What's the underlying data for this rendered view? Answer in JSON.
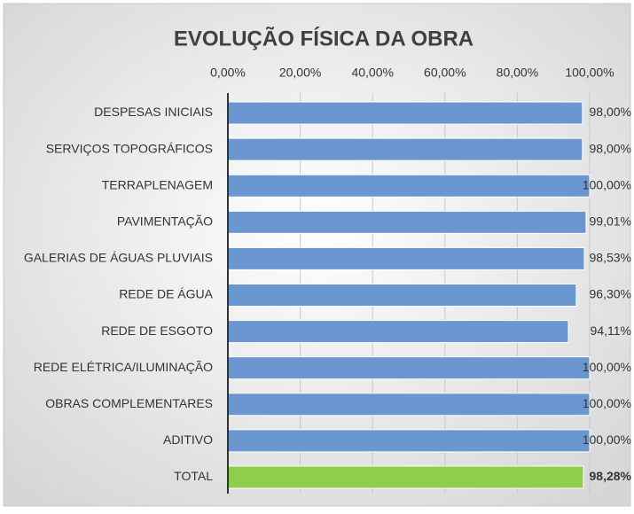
{
  "chart_data": {
    "type": "bar",
    "orientation": "horizontal",
    "title": "EVOLUÇÃO FÍSICA DA OBRA",
    "categories": [
      "DESPESAS INICIAIS",
      "SERVIÇOS TOPOGRÁFICOS",
      "TERRAPLENAGEM",
      "PAVIMENTAÇÃO",
      "GALERIAS DE ÁGUAS PLUVIAIS",
      "REDE DE ÁGUA",
      "REDE DE ESGOTO",
      "REDE ELÉTRICA/ILUMINAÇÃO",
      "OBRAS COMPLEMENTARES",
      "ADITIVO",
      "TOTAL"
    ],
    "values": [
      98,
      98,
      100,
      99.01,
      98.53,
      96.3,
      94.11,
      100,
      100,
      100,
      98.28
    ],
    "value_labels": [
      "98,00%",
      "98,00%",
      "100,00%",
      "99,01%",
      "98,53%",
      "96,30%",
      "94,11%",
      "100,00%",
      "100,00%",
      "100,00%",
      "98,28%"
    ],
    "colors": [
      "#6a97d0",
      "#6a97d0",
      "#6a97d0",
      "#6a97d0",
      "#6a97d0",
      "#6a97d0",
      "#6a97d0",
      "#6a97d0",
      "#6a97d0",
      "#6a97d0",
      "#8fce4b"
    ],
    "xlim": [
      0,
      100
    ],
    "xticks": [
      {
        "value": 0,
        "label": "0,00%"
      },
      {
        "value": 20,
        "label": "20,00%"
      },
      {
        "value": 40,
        "label": "40,00%"
      },
      {
        "value": 60,
        "label": "60,00%"
      },
      {
        "value": 80,
        "label": "80,00%"
      },
      {
        "value": 100,
        "label": "100,00%"
      }
    ],
    "grid": true
  }
}
